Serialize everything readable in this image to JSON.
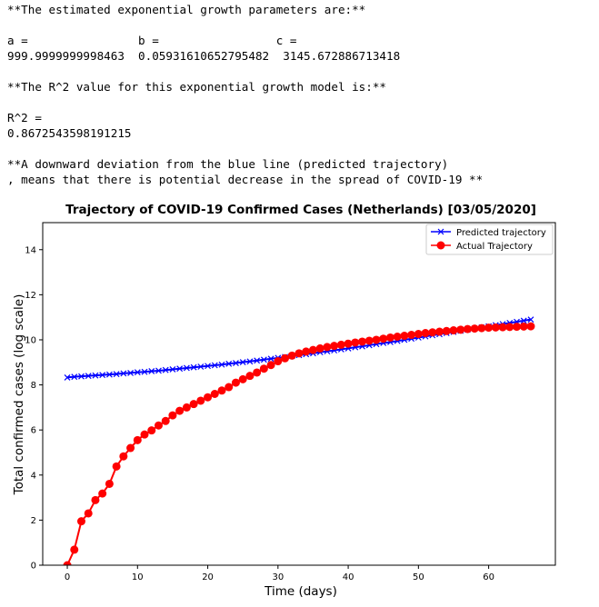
{
  "output_lines": [
    "**The estimated exponential growth parameters are:**",
    "",
    "a =                b =                 c =",
    "999.9999999998463  0.05931610652795482  3145.672886713418",
    "",
    "**The R^2 value for this exponential growth model is:**",
    "",
    "R^2 =",
    "0.8672543598191215",
    "",
    "**A downward deviation from the blue line (predicted trajectory)",
    ", means that there is potential decrease in the spread of COVID-19 **"
  ],
  "chart_data": {
    "type": "line",
    "title": "Trajectory of COVID-19 Confirmed Cases (Netherlands) [03/05/2020]",
    "xlabel": "Time (days)",
    "ylabel": "Total confirmed cases (log scale)",
    "xlim": [
      -3.5,
      69.5
    ],
    "ylim": [
      0,
      15.2
    ],
    "xticks": [
      0,
      10,
      20,
      30,
      40,
      50,
      60
    ],
    "yticks": [
      0,
      2,
      4,
      6,
      8,
      10,
      12,
      14
    ],
    "legend": "top-right",
    "grid": false,
    "x": [
      0,
      1,
      2,
      3,
      4,
      5,
      6,
      7,
      8,
      9,
      10,
      11,
      12,
      13,
      14,
      15,
      16,
      17,
      18,
      19,
      20,
      21,
      22,
      23,
      24,
      25,
      26,
      27,
      28,
      29,
      30,
      31,
      32,
      33,
      34,
      35,
      36,
      37,
      38,
      39,
      40,
      41,
      42,
      43,
      44,
      45,
      46,
      47,
      48,
      49,
      50,
      51,
      52,
      53,
      54,
      55,
      56,
      57,
      58,
      59,
      60,
      61,
      62,
      63,
      64,
      65,
      66
    ],
    "series": [
      {
        "name": "Predicted trajectory",
        "color": "#0000ff",
        "marker": "x",
        "values": [
          8.33,
          8.36,
          8.38,
          8.4,
          8.42,
          8.44,
          8.46,
          8.48,
          8.51,
          8.53,
          8.56,
          8.58,
          8.61,
          8.63,
          8.66,
          8.69,
          8.72,
          8.75,
          8.78,
          8.81,
          8.84,
          8.87,
          8.9,
          8.94,
          8.97,
          9.01,
          9.04,
          9.08,
          9.12,
          9.16,
          9.2,
          9.24,
          9.28,
          9.32,
          9.36,
          9.4,
          9.45,
          9.49,
          9.53,
          9.58,
          9.62,
          9.67,
          9.71,
          9.76,
          9.81,
          9.86,
          9.9,
          9.95,
          10.0,
          10.05,
          10.1,
          10.15,
          10.2,
          10.25,
          10.3,
          10.35,
          10.4,
          10.45,
          10.5,
          10.55,
          10.6,
          10.65,
          10.7,
          10.75,
          10.8,
          10.85,
          10.9
        ]
      },
      {
        "name": "Actual Trajectory",
        "color": "#ff0000",
        "marker": "o",
        "values": [
          0,
          0.69,
          1.95,
          2.3,
          2.89,
          3.18,
          3.61,
          4.38,
          4.83,
          5.2,
          5.55,
          5.8,
          5.98,
          6.2,
          6.4,
          6.65,
          6.85,
          7.0,
          7.15,
          7.3,
          7.45,
          7.6,
          7.75,
          7.9,
          8.1,
          8.25,
          8.4,
          8.55,
          8.72,
          8.88,
          9.05,
          9.18,
          9.3,
          9.4,
          9.48,
          9.55,
          9.62,
          9.68,
          9.73,
          9.78,
          9.83,
          9.88,
          9.92,
          9.96,
          10.0,
          10.05,
          10.1,
          10.14,
          10.18,
          10.22,
          10.26,
          10.3,
          10.33,
          10.36,
          10.39,
          10.42,
          10.45,
          10.48,
          10.5,
          10.52,
          10.54,
          10.55,
          10.56,
          10.57,
          10.58,
          10.59,
          10.6
        ]
      }
    ]
  }
}
